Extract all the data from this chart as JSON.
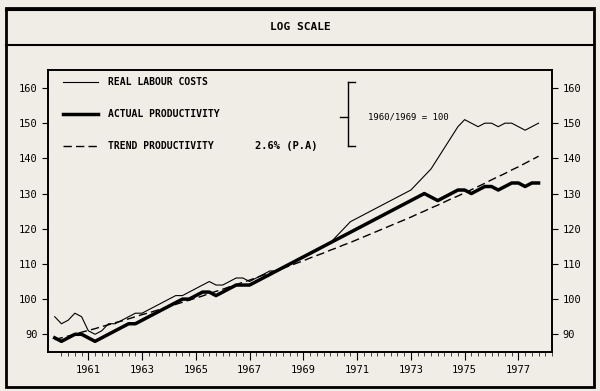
{
  "title": "LOG SCALE",
  "annotation": "1960/1969 = 100",
  "trend_label": "2.6% (P.A)",
  "xlim": [
    1959.5,
    1978.2
  ],
  "ylim": [
    85,
    165
  ],
  "yticks": [
    90,
    100,
    110,
    120,
    130,
    140,
    150,
    160
  ],
  "xticks": [
    1961,
    1963,
    1965,
    1967,
    1969,
    1971,
    1973,
    1975,
    1977
  ],
  "background_color": "#f0ede6",
  "years_quarterly": [
    1959.75,
    1960.0,
    1960.25,
    1960.5,
    1960.75,
    1961.0,
    1961.25,
    1961.5,
    1961.75,
    1962.0,
    1962.25,
    1962.5,
    1962.75,
    1963.0,
    1963.25,
    1963.5,
    1963.75,
    1964.0,
    1964.25,
    1964.5,
    1964.75,
    1965.0,
    1965.25,
    1965.5,
    1965.75,
    1966.0,
    1966.25,
    1966.5,
    1966.75,
    1967.0,
    1967.25,
    1967.5,
    1967.75,
    1968.0,
    1968.25,
    1968.5,
    1968.75,
    1969.0,
    1969.25,
    1969.5,
    1969.75,
    1970.0,
    1970.25,
    1970.5,
    1970.75,
    1971.0,
    1971.25,
    1971.5,
    1971.75,
    1972.0,
    1972.25,
    1972.5,
    1972.75,
    1973.0,
    1973.25,
    1973.5,
    1973.75,
    1974.0,
    1974.25,
    1974.5,
    1974.75,
    1975.0,
    1975.25,
    1975.5,
    1975.75,
    1976.0,
    1976.25,
    1976.5,
    1976.75,
    1977.0,
    1977.25,
    1977.5,
    1977.75
  ],
  "real_labour_costs": [
    95,
    93,
    94,
    96,
    95,
    91,
    90,
    91,
    93,
    93,
    94,
    95,
    96,
    96,
    97,
    98,
    99,
    100,
    101,
    101,
    102,
    103,
    104,
    105,
    104,
    104,
    105,
    106,
    106,
    105,
    106,
    107,
    108,
    108,
    109,
    110,
    111,
    112,
    113,
    114,
    115,
    116,
    118,
    120,
    122,
    123,
    124,
    125,
    126,
    127,
    128,
    129,
    130,
    131,
    133,
    135,
    137,
    140,
    143,
    146,
    149,
    151,
    150,
    149,
    150,
    150,
    149,
    150,
    150,
    149,
    148,
    149,
    150
  ],
  "actual_productivity": [
    89,
    88,
    89,
    90,
    90,
    89,
    88,
    89,
    90,
    91,
    92,
    93,
    93,
    94,
    95,
    96,
    97,
    98,
    99,
    100,
    100,
    101,
    102,
    102,
    101,
    102,
    103,
    104,
    104,
    104,
    105,
    106,
    107,
    108,
    109,
    110,
    111,
    112,
    113,
    114,
    115,
    116,
    117,
    118,
    119,
    120,
    121,
    122,
    123,
    124,
    125,
    126,
    127,
    128,
    129,
    130,
    129,
    128,
    129,
    130,
    131,
    131,
    130,
    131,
    132,
    132,
    131,
    132,
    133,
    133,
    132,
    133,
    133
  ],
  "trend_productivity": [
    88.5,
    89.0,
    89.5,
    90.0,
    90.6,
    91.1,
    91.6,
    92.2,
    92.7,
    93.3,
    93.8,
    94.4,
    95.0,
    95.6,
    96.1,
    96.7,
    97.3,
    97.9,
    98.5,
    99.1,
    99.7,
    100.3,
    100.9,
    101.6,
    102.2,
    102.8,
    103.5,
    104.1,
    104.8,
    105.4,
    106.1,
    106.8,
    107.5,
    108.1,
    108.8,
    109.5,
    110.2,
    110.9,
    111.7,
    112.4,
    113.1,
    113.9,
    114.6,
    115.4,
    116.1,
    116.9,
    117.7,
    118.5,
    119.3,
    120.1,
    120.9,
    121.7,
    122.5,
    123.3,
    124.2,
    125.0,
    125.9,
    126.7,
    127.6,
    128.5,
    129.3,
    130.2,
    131.1,
    132.0,
    132.9,
    133.9,
    134.8,
    135.7,
    136.7,
    137.6,
    138.6,
    139.6,
    140.6
  ]
}
